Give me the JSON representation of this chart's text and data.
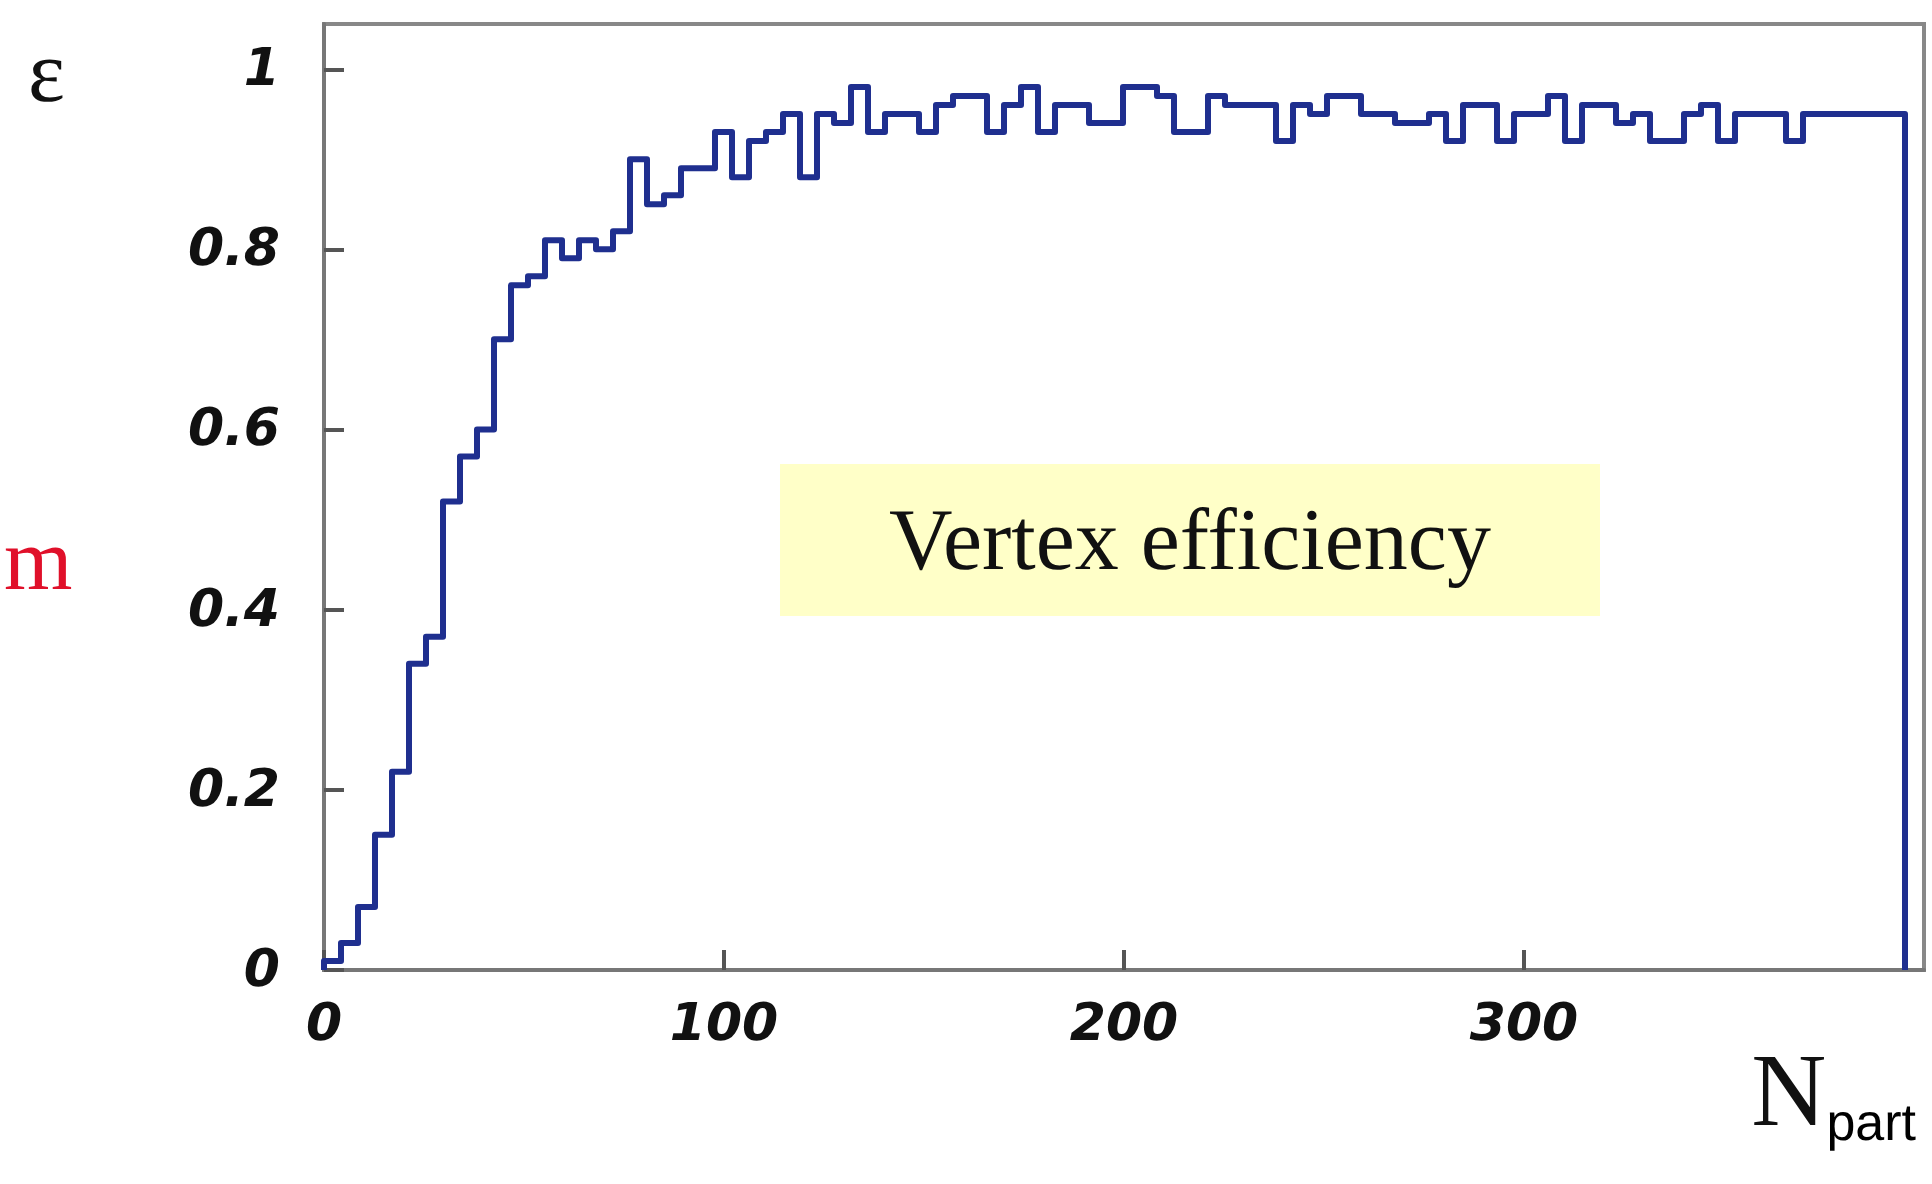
{
  "chart_data": {
    "type": "histogram",
    "xlabel": "N$_{part}$",
    "ylabel": "ε",
    "annotations": [
      "Vertex efficiency",
      "m"
    ],
    "bins": [
      0,
      4.25,
      8.5,
      12.75,
      17,
      21.25,
      25.5,
      29.75,
      34,
      38.25,
      42.5,
      46.75,
      51,
      55.25,
      59.5,
      63.75,
      68,
      72.25,
      76.5,
      80.75,
      85,
      89.25,
      93.5,
      97.75,
      102,
      106.25,
      110.5,
      114.75,
      119,
      123.25,
      127.5,
      131.75,
      136,
      140.25,
      144.5,
      148.75,
      153,
      157.25,
      161.5,
      165.75,
      170,
      174.25,
      178.5,
      182.75,
      187,
      191.25,
      195.5,
      199.75,
      204,
      208.25,
      212.5,
      216.75,
      221,
      225.25,
      229.5,
      233.75,
      238,
      242.25,
      246.5,
      250.75,
      255,
      259.25,
      263.5,
      267.75,
      272,
      276.25,
      280.5,
      284.75,
      289,
      293.25,
      297.5,
      301.75,
      306,
      310.25,
      314.5,
      318.75,
      323,
      327.25,
      331.5,
      335.75,
      340,
      344.25,
      348.5,
      352.75,
      357,
      361.25,
      365.5,
      369.75,
      374,
      378.25,
      382.5,
      386.75,
      391,
      395.25
    ],
    "values": [
      0.01,
      0.03,
      0.07,
      0.15,
      0.22,
      0.34,
      0.37,
      0.52,
      0.57,
      0.6,
      0.7,
      0.76,
      0.77,
      0.81,
      0.79,
      0.81,
      0.8,
      0.82,
      0.9,
      0.85,
      0.86,
      0.89,
      0.89,
      0.93,
      0.88,
      0.92,
      0.93,
      0.95,
      0.88,
      0.95,
      0.94,
      0.98,
      0.93,
      0.95,
      0.95,
      0.93,
      0.96,
      0.97,
      0.97,
      0.93,
      0.96,
      0.98,
      0.93,
      0.96,
      0.96,
      0.94,
      0.94,
      0.98,
      0.98,
      0.97,
      0.93,
      0.93,
      0.97,
      0.96,
      0.96,
      0.96,
      0.92,
      0.96,
      0.95,
      0.97,
      0.97,
      0.95,
      0.95,
      0.94,
      0.94,
      0.95,
      0.92,
      0.96,
      0.96,
      0.92,
      0.95,
      0.95,
      0.97,
      0.92,
      0.96,
      0.96,
      0.94,
      0.95,
      0.92,
      0.92,
      0.95,
      0.96,
      0.92,
      0.95,
      0.95,
      0.95,
      0.92,
      0.95,
      0.95,
      0.95,
      0.95,
      0.95,
      0.95
    ],
    "color": "#1f2f8f",
    "xlim": [
      0,
      400
    ],
    "ylim": [
      0,
      1.05
    ],
    "xticks": [
      0,
      100,
      200,
      300
    ],
    "yticks": [
      0,
      0.2,
      0.4,
      0.6,
      0.8,
      1
    ],
    "grid": false
  }
}
